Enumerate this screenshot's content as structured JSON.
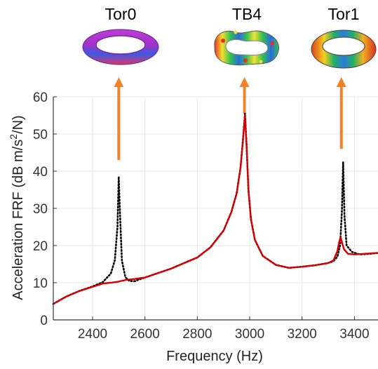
{
  "chart_data": {
    "type": "line",
    "title": "",
    "xlabel": "Frequency (Hz)",
    "ylabel_main": "Acceleration FRF (dB m/s",
    "ylabel_sup": "2",
    "ylabel_tail": "/N)",
    "xlim": [
      2250,
      3490
    ],
    "ylim": [
      0,
      60
    ],
    "xticks": [
      2400,
      2600,
      2800,
      3000,
      3200,
      3400
    ],
    "yticks": [
      0,
      10,
      20,
      30,
      40,
      50,
      60
    ],
    "grid": true,
    "series": [
      {
        "style": "dotted",
        "color": "#000000",
        "x": [
          2250,
          2300,
          2350,
          2400,
          2440,
          2470,
          2485,
          2495,
          2500,
          2505,
          2512,
          2525,
          2540,
          2560,
          2600,
          2650,
          2700,
          2750,
          2800,
          2850,
          2900,
          2930,
          2950,
          2965,
          2975,
          2982,
          2988,
          2995,
          3005,
          3020,
          3050,
          3100,
          3150,
          3200,
          3250,
          3300,
          3320,
          3335,
          3345,
          3352,
          3357,
          3362,
          3370,
          3390,
          3420,
          3460,
          3490
        ],
        "y": [
          4.3,
          6.3,
          7.8,
          9.0,
          10.2,
          12.5,
          16,
          25,
          38.5,
          28,
          16,
          11.5,
          10.5,
          10.4,
          11.4,
          12.6,
          13.8,
          15.3,
          16.8,
          19.5,
          24,
          29,
          34,
          41,
          49,
          55.5,
          47,
          35,
          27,
          21.5,
          17.2,
          14.8,
          14.0,
          14.3,
          14.7,
          15.3,
          15.8,
          17.0,
          20,
          29,
          42.5,
          28,
          20,
          18.3,
          17.6,
          17.8,
          18.0
        ]
      },
      {
        "style": "solid",
        "color": "#d40000",
        "x": [
          2250,
          2300,
          2350,
          2400,
          2440,
          2470,
          2490,
          2500,
          2510,
          2530,
          2560,
          2600,
          2650,
          2700,
          2750,
          2800,
          2850,
          2900,
          2930,
          2950,
          2965,
          2975,
          2982,
          2988,
          2995,
          3005,
          3020,
          3050,
          3100,
          3150,
          3200,
          3250,
          3300,
          3320,
          3335,
          3342,
          3347,
          3352,
          3360,
          3375,
          3400,
          3440,
          3490
        ],
        "y": [
          4.3,
          6.3,
          7.8,
          8.9,
          9.8,
          10.0,
          10.2,
          10.3,
          10.5,
          10.8,
          11.0,
          11.4,
          12.6,
          13.8,
          15.3,
          16.8,
          19.5,
          24,
          29,
          34,
          41,
          49,
          55,
          47,
          35,
          27,
          21.5,
          17.2,
          14.8,
          14.0,
          14.3,
          14.7,
          15.3,
          16.0,
          18.5,
          21.0,
          22.3,
          21.0,
          19.0,
          17.8,
          17.6,
          17.8,
          18.0
        ]
      }
    ],
    "modes": [
      {
        "label": "Tor0",
        "x": 2500
      },
      {
        "label": "TB4",
        "x": 2980
      },
      {
        "label": "Tor1",
        "x": 3350
      }
    ],
    "colors": {
      "arrow": "#f0832a",
      "red_curve": "#d40000",
      "grid": "#e6e6e6"
    }
  }
}
